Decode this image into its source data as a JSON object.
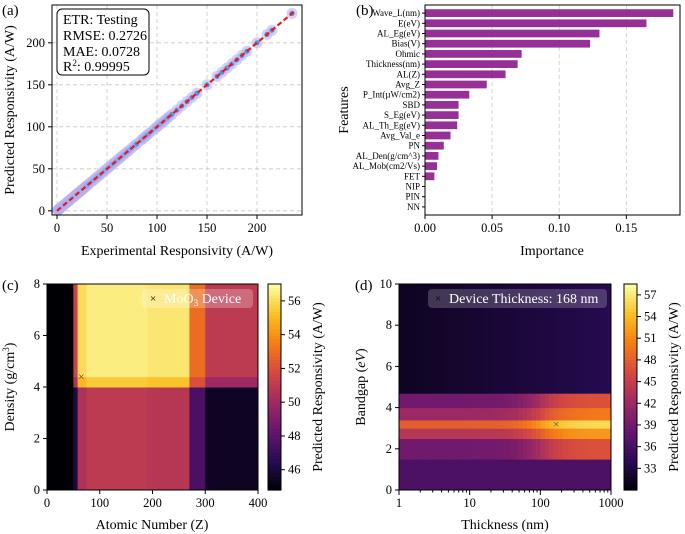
{
  "chart_data": [
    {
      "id": "a",
      "type": "scatter",
      "panel_label": "(a)",
      "xlabel": "Experimental Responsivity (A/W)",
      "ylabel": "Predicted Responsivity (A/W)",
      "xlim": [
        -5,
        245
      ],
      "ylim": [
        -5,
        245
      ],
      "xticks": [
        0,
        50,
        100,
        150,
        200
      ],
      "yticks": [
        0,
        50,
        100,
        150,
        200
      ],
      "grid": true,
      "legend": "top-left",
      "stats": {
        "line1": "ETR: Testing",
        "line2": "RMSE: 0.2726",
        "line3": "MAE: 0.0728",
        "r2_prefix": "R",
        "r2_sup": "2",
        "r2_value": ": 0.99995"
      },
      "points": [
        0.5,
        1,
        1.5,
        2,
        2.5,
        3,
        3.5,
        4,
        5,
        6,
        7,
        8,
        9,
        10,
        11,
        12,
        13,
        14,
        15,
        16,
        17,
        18,
        19,
        20,
        21,
        22,
        23,
        24,
        25,
        26,
        27,
        28,
        29,
        30,
        32,
        34,
        36,
        38,
        40,
        42,
        44,
        46,
        48,
        50,
        52,
        54,
        56,
        58,
        60,
        62,
        64,
        66,
        68,
        70,
        72,
        75,
        78,
        80,
        84,
        86,
        88,
        90,
        92,
        95,
        98,
        100,
        102,
        104,
        106,
        108,
        110,
        112,
        115,
        120,
        125,
        130,
        135,
        140,
        150,
        160,
        165,
        170,
        175,
        180,
        185,
        190,
        200,
        210,
        215,
        235
      ],
      "fit_line": [
        [
          0,
          0
        ],
        [
          238,
          238
        ]
      ],
      "colors": {
        "points": "#4c8bd6",
        "points_halo": "#b8b0f2",
        "fit": "#e31a1c"
      }
    },
    {
      "id": "b",
      "type": "bar",
      "orientation": "horizontal",
      "panel_label": "(b)",
      "xlabel": "Importance",
      "ylabel": "Features",
      "xlim": [
        0,
        0.19
      ],
      "xticks": [
        0.0,
        0.05,
        0.1,
        0.15
      ],
      "xtick_labels": [
        "0.00",
        "0.05",
        "0.10",
        "0.15"
      ],
      "grid": true,
      "categories": [
        "Wave_L(nm)",
        "E(eV)",
        "AL_Eg(eV)",
        "Bias(V)",
        "Ohmic",
        "Thickness(nm)",
        "AL(Z)",
        "Avg_Z",
        "P_Int(µW/cm2)",
        "SBD",
        "S_Eg(eV)",
        "AL_Th_Eg(eV)",
        "Avg_Val_e",
        "PN",
        "AL_Den(g/cm^3)",
        "AL_Mob(cm2/Vs)",
        "FET",
        "NIP",
        "PIN",
        "NN"
      ],
      "values": [
        0.185,
        0.165,
        0.13,
        0.123,
        0.072,
        0.069,
        0.06,
        0.046,
        0.033,
        0.025,
        0.025,
        0.024,
        0.019,
        0.014,
        0.01,
        0.009,
        0.007,
        0.0,
        0.0,
        0.0
      ],
      "colors": {
        "bar": "#8b1a8b"
      }
    },
    {
      "id": "c",
      "type": "heatmap",
      "panel_label": "(c)",
      "xlabel": "Atomic Number (Z)",
      "ylabel_prefix": "Density (g/cm",
      "ylabel_sup": "3",
      "ylabel_suffix": ")",
      "xlim": [
        0,
        400
      ],
      "ylim": [
        0,
        8
      ],
      "xticks": [
        0,
        100,
        200,
        300,
        400
      ],
      "yticks": [
        0,
        2,
        4,
        6,
        8
      ],
      "x_bands": [
        {
          "range": [
            0,
            30
          ],
          "level": -7
        },
        {
          "range": [
            30,
            50
          ],
          "level": -3
        },
        {
          "range": [
            50,
            58
          ],
          "level": 0
        },
        {
          "range": [
            58,
            75
          ],
          "level": 4.5
        },
        {
          "range": [
            75,
            190
          ],
          "level": 5
        },
        {
          "range": [
            190,
            270
          ],
          "level": 4.8
        },
        {
          "range": [
            270,
            300
          ],
          "level": 1.5
        },
        {
          "range": [
            300,
            400
          ],
          "level": -0.5
        }
      ],
      "y_bands": [
        {
          "range": [
            0,
            4.0
          ],
          "level": 0
        },
        {
          "range": [
            4.0,
            4.4
          ],
          "level": 4.5
        },
        {
          "range": [
            4.4,
            8.0
          ],
          "level": 5.5
        }
      ],
      "base_value": 46,
      "marker": {
        "x": 65,
        "y": 4.4,
        "label_main": "MoO",
        "label_sub": "3",
        "label_tail": " Device"
      },
      "colorbar": {
        "label": "Predicted Responsivity (A/W)",
        "min": 44.8,
        "max": 57.0,
        "ticks": [
          46,
          48,
          50,
          52,
          54,
          56
        ]
      },
      "colormap": "inferno"
    },
    {
      "id": "d",
      "type": "heatmap",
      "panel_label": "(d)",
      "xlabel": "Thickness (nm)",
      "ylabel_prefix": "Bandgap (",
      "ylabel_var": "eV",
      "ylabel_suffix": ")",
      "xscale": "log",
      "xlim": [
        1,
        1000
      ],
      "ylim": [
        0,
        10
      ],
      "xticks": [
        1,
        10,
        100,
        1000
      ],
      "yticks": [
        0,
        2,
        4,
        6,
        8,
        10
      ],
      "y_bands": [
        {
          "range": [
            0,
            1.5
          ],
          "level": 36.5
        },
        {
          "range": [
            1.5,
            2.5
          ],
          "level": 39
        },
        {
          "range": [
            2.5,
            3.0
          ],
          "level": 44
        },
        {
          "range": [
            3.0,
            3.4
          ],
          "level": 48
        },
        {
          "range": [
            3.4,
            4.0
          ],
          "level": 42
        },
        {
          "range": [
            4.0,
            4.7
          ],
          "level": 39
        },
        {
          "range": [
            4.7,
            10
          ],
          "level": 31.5
        }
      ],
      "thick_threshold": 100,
      "thick_boost": 8,
      "marker": {
        "x": 168,
        "y": 3.2,
        "label": "Device Thickness: 168 nm"
      },
      "colorbar": {
        "label": "Predicted Responsivity (A/W)",
        "min": 30.0,
        "max": 58.5,
        "ticks": [
          33,
          36,
          39,
          42,
          45,
          48,
          51,
          54,
          57
        ]
      },
      "colormap": "inferno"
    }
  ]
}
